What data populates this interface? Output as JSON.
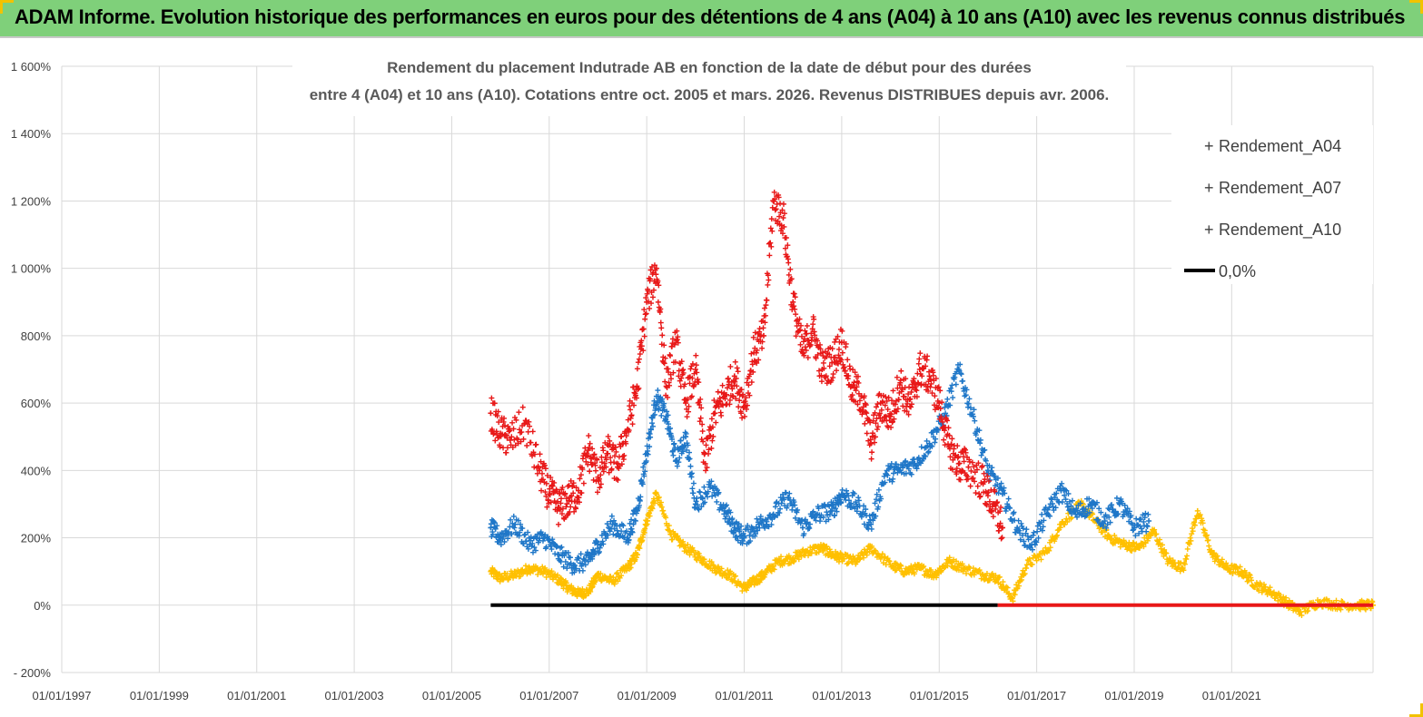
{
  "banner": {
    "title": "ADAM Informe. Evolution historique des performances en euros pour des détentions de 4 ans (A04) à 10 ans (A10) avec les revenus connus distribués"
  },
  "chart_data": {
    "type": "scatter",
    "title_lines": [
      "Rendement du placement Indutrade AB en fonction de la date de début pour des durées",
      "entre 4 (A04) et 10 ans (A10). Cotations entre oct. 2005 et mars. 2026. Revenus DISTRIBUES depuis avr. 2006."
    ],
    "xlim": [
      1997.0,
      2023.9
    ],
    "ylim": [
      -200,
      1600
    ],
    "y_ticks": [
      -200,
      0,
      200,
      400,
      600,
      800,
      1000,
      1200,
      1400,
      1600
    ],
    "y_tick_labels": [
      "- 200%",
      "0%",
      "200%",
      "400%",
      "600%",
      "800%",
      "1 000%",
      "1 200%",
      "1 400%",
      "1 600%"
    ],
    "x_ticks": [
      1997,
      1999,
      2001,
      2003,
      2005,
      2007,
      2009,
      2011,
      2013,
      2015,
      2017,
      2019,
      2021
    ],
    "x_tick_labels": [
      "01/01/1997",
      "01/01/1999",
      "01/01/2001",
      "01/01/2003",
      "01/01/2005",
      "01/01/2007",
      "01/01/2009",
      "01/01/2011",
      "01/01/2013",
      "01/01/2015",
      "01/01/2017",
      "01/01/2019",
      "01/01/2021"
    ],
    "grid": true,
    "legend_position": "top-right",
    "series": [
      {
        "name": "Rendement_A04",
        "color": "#ffc000",
        "marker": "+",
        "x": [
          2005.8,
          2006.0,
          2006.3,
          2006.6,
          2006.9,
          2007.2,
          2007.4,
          2007.6,
          2007.8,
          2008.0,
          2008.3,
          2008.6,
          2008.8,
          2009.0,
          2009.2,
          2009.5,
          2009.8,
          2010.1,
          2010.4,
          2010.7,
          2011.0,
          2011.2,
          2011.4,
          2011.7,
          2012.0,
          2012.3,
          2012.6,
          2012.8,
          2013.0,
          2013.3,
          2013.6,
          2014.0,
          2014.3,
          2014.6,
          2014.9,
          2015.2,
          2015.5,
          2015.9,
          2016.2,
          2016.5,
          2016.8,
          2017.2,
          2017.5,
          2017.9,
          2018.2,
          2018.5,
          2018.8,
          2019.1,
          2019.4,
          2019.7,
          2020.0,
          2020.3,
          2020.6,
          2020.9,
          2021.2,
          2021.5,
          2021.8,
          2022.1,
          2022.4,
          2022.8,
          2023.2,
          2023.6,
          2023.9
        ],
        "y": [
          100,
          80,
          90,
          110,
          100,
          75,
          50,
          35,
          40,
          90,
          70,
          110,
          150,
          250,
          330,
          210,
          170,
          140,
          110,
          90,
          50,
          70,
          90,
          130,
          140,
          160,
          170,
          150,
          140,
          130,
          170,
          120,
          100,
          110,
          90,
          130,
          110,
          90,
          80,
          20,
          120,
          160,
          240,
          300,
          250,
          200,
          180,
          170,
          220,
          130,
          110,
          280,
          150,
          110,
          100,
          60,
          40,
          10,
          -20,
          10,
          0,
          0,
          0
        ]
      },
      {
        "name": "Rendement_A07",
        "color": "#1f77c8",
        "marker": "+",
        "x": [
          2005.8,
          2006.0,
          2006.3,
          2006.6,
          2006.9,
          2007.2,
          2007.5,
          2007.8,
          2008.0,
          2008.3,
          2008.6,
          2008.8,
          2009.0,
          2009.2,
          2009.4,
          2009.6,
          2009.8,
          2010.0,
          2010.3,
          2010.6,
          2010.8,
          2011.0,
          2011.3,
          2011.6,
          2011.9,
          2012.2,
          2012.5,
          2012.8,
          2013.0,
          2013.3,
          2013.6,
          2013.9,
          2014.2,
          2014.5,
          2014.8,
          2015.1,
          2015.4,
          2015.7,
          2016.0,
          2016.3,
          2016.6,
          2016.9,
          2017.2,
          2017.5,
          2017.8,
          2018.1,
          2018.4,
          2018.7,
          2019.0,
          2019.3
        ],
        "y": [
          230,
          200,
          240,
          180,
          200,
          150,
          120,
          130,
          180,
          240,
          200,
          280,
          450,
          620,
          560,
          430,
          500,
          300,
          350,
          280,
          230,
          200,
          240,
          270,
          320,
          230,
          270,
          280,
          330,
          300,
          240,
          390,
          400,
          420,
          480,
          560,
          700,
          560,
          400,
          330,
          230,
          180,
          270,
          340,
          270,
          300,
          250,
          300,
          230,
          250
        ]
      },
      {
        "name": "Rendement_A10",
        "color": "#e81818",
        "marker": "+",
        "x": [
          2005.8,
          2006.0,
          2006.2,
          2006.5,
          2006.8,
          2007.0,
          2007.2,
          2007.4,
          2007.6,
          2007.8,
          2008.0,
          2008.2,
          2008.4,
          2008.6,
          2008.8,
          2009.0,
          2009.2,
          2009.4,
          2009.6,
          2009.8,
          2010.0,
          2010.2,
          2010.4,
          2010.6,
          2010.8,
          2011.0,
          2011.2,
          2011.4,
          2011.6,
          2011.8,
          2012.0,
          2012.2,
          2012.4,
          2012.6,
          2012.8,
          2013.0,
          2013.2,
          2013.4,
          2013.6,
          2013.8,
          2014.0,
          2014.2,
          2014.4,
          2014.6,
          2014.8,
          2015.0,
          2015.2,
          2015.4,
          2015.6,
          2015.9,
          2016.1,
          2016.3
        ],
        "y": [
          570,
          510,
          490,
          540,
          400,
          330,
          290,
          310,
          340,
          460,
          380,
          450,
          410,
          520,
          650,
          900,
          1000,
          650,
          780,
          600,
          700,
          420,
          570,
          620,
          680,
          590,
          750,
          800,
          1200,
          1150,
          900,
          750,
          820,
          700,
          720,
          780,
          650,
          620,
          480,
          600,
          560,
          660,
          590,
          700,
          680,
          600,
          470,
          420,
          410,
          360,
          300,
          230
        ]
      },
      {
        "name": "0,0%",
        "color": "#000000",
        "marker": "line",
        "segments": [
          {
            "x0": 2005.8,
            "x1": 2016.2,
            "y": 0,
            "color": "#000000"
          },
          {
            "x0": 2016.2,
            "x1": 2023.9,
            "y": 0,
            "color": "#e81818"
          }
        ]
      }
    ]
  }
}
